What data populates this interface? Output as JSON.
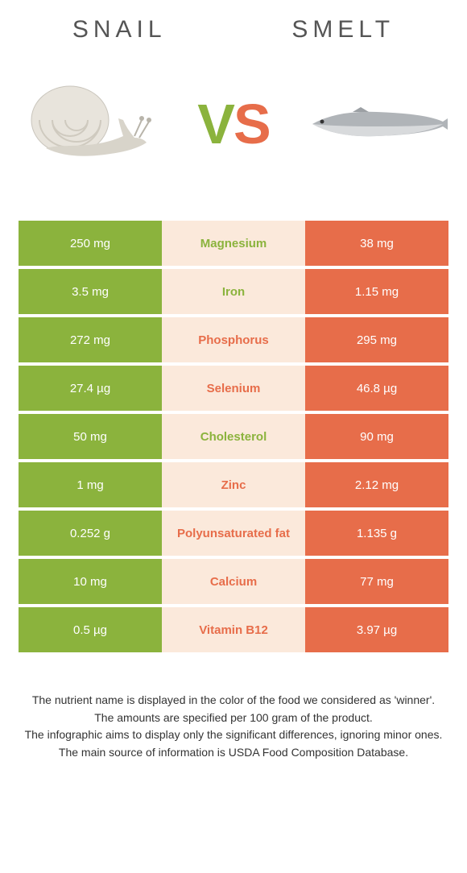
{
  "colors": {
    "green": "#8bb33d",
    "orange": "#e76d4a",
    "mid_bg": "#fbe9db",
    "white": "#ffffff",
    "text_dark": "#333333"
  },
  "header": {
    "left": "Snail",
    "right": "Smelt"
  },
  "vs": {
    "v": "V",
    "s": "S"
  },
  "rows": [
    {
      "left": "250 mg",
      "label": "Magnesium",
      "right": "38 mg",
      "winner": "left"
    },
    {
      "left": "3.5 mg",
      "label": "Iron",
      "right": "1.15 mg",
      "winner": "left"
    },
    {
      "left": "272 mg",
      "label": "Phosphorus",
      "right": "295 mg",
      "winner": "right"
    },
    {
      "left": "27.4 µg",
      "label": "Selenium",
      "right": "46.8 µg",
      "winner": "right"
    },
    {
      "left": "50 mg",
      "label": "Cholesterol",
      "right": "90 mg",
      "winner": "left"
    },
    {
      "left": "1 mg",
      "label": "Zinc",
      "right": "2.12 mg",
      "winner": "right"
    },
    {
      "left": "0.252 g",
      "label": "Polyunsaturated fat",
      "right": "1.135 g",
      "winner": "right"
    },
    {
      "left": "10 mg",
      "label": "Calcium",
      "right": "77 mg",
      "winner": "right"
    },
    {
      "left": "0.5 µg",
      "label": "Vitamin B12",
      "right": "3.97 µg",
      "winner": "right"
    }
  ],
  "footer": {
    "line1": "The nutrient name is displayed in the color of the food we considered as 'winner'.",
    "line2": "The amounts are specified per 100 gram of the product.",
    "line3": "The infographic aims to display only the significant differences, ignoring minor ones.",
    "line4": "The main source of information is USDA Food Composition Database."
  }
}
